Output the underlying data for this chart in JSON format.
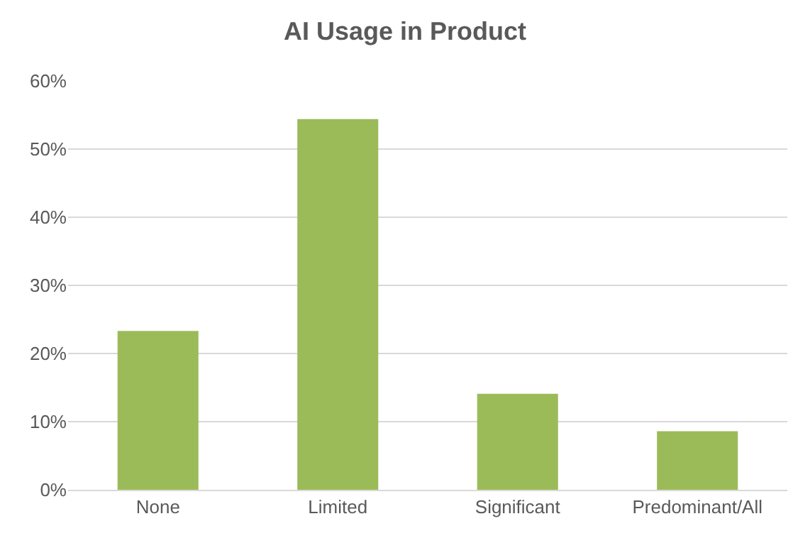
{
  "chart_data": {
    "type": "bar",
    "title": "AI Usage in Product",
    "categories": [
      "None",
      "Limited",
      "Significant",
      "Predominant/All"
    ],
    "values": [
      23.3,
      54.4,
      14.1,
      8.6
    ],
    "color": "#9bbb59",
    "ylim": [
      0,
      60
    ],
    "yticks": [
      {
        "value": 0,
        "label": "0%"
      },
      {
        "value": 10,
        "label": "10%"
      },
      {
        "value": 20,
        "label": "20%"
      },
      {
        "value": 30,
        "label": "30%"
      },
      {
        "value": 40,
        "label": "40%"
      },
      {
        "value": 50,
        "label": "50%"
      },
      {
        "value": 60,
        "label": "60%"
      }
    ],
    "grid": "y"
  }
}
